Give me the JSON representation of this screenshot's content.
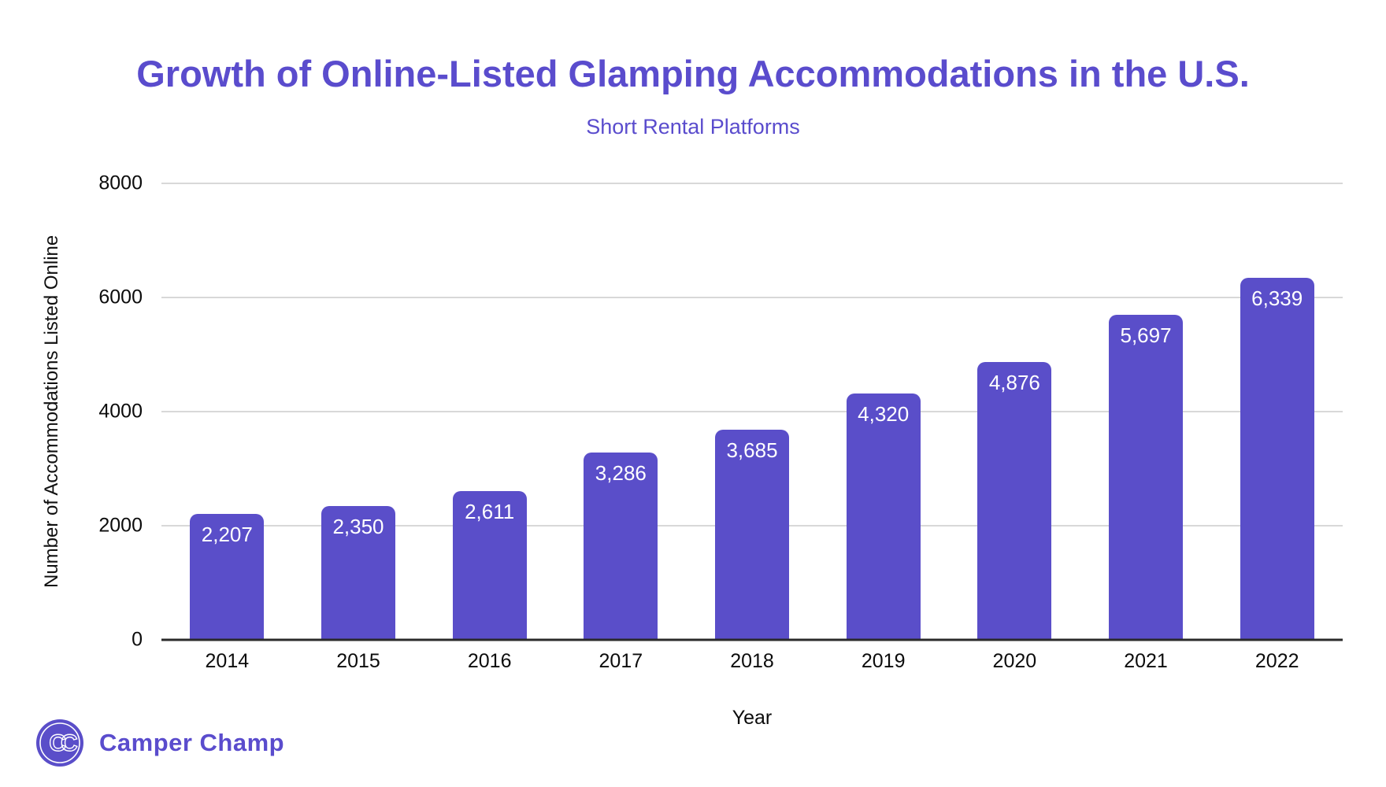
{
  "page": {
    "title": "Growth of Online-Listed Glamping Accommodations in the U.S.",
    "subtitle": "Short Rental Platforms"
  },
  "brand": {
    "name": "Camper Champ",
    "logo_initials": "CC"
  },
  "colors": {
    "accent": "#5a4ccd",
    "bar_fill": "#5a4ec9",
    "bar_label_text": "#ffffff",
    "gridline": "#d8d8d8",
    "axis_line": "#2b2b2b",
    "background": "#ffffff"
  },
  "chart_data": {
    "type": "bar",
    "title": "Growth of Online-Listed Glamping Accommodations in the U.S.",
    "subtitle": "Short Rental Platforms",
    "xlabel": "Year",
    "ylabel": "Number of Accommodations Listed Online",
    "categories": [
      "2014",
      "2015",
      "2016",
      "2017",
      "2018",
      "2019",
      "2020",
      "2021",
      "2022"
    ],
    "values": [
      2207,
      2350,
      2611,
      3286,
      3685,
      4320,
      4876,
      5697,
      6339
    ],
    "value_labels": [
      "2,207",
      "2,350",
      "2,611",
      "3,286",
      "3,685",
      "4,320",
      "4,876",
      "5,697",
      "6,339"
    ],
    "ylim": [
      0,
      8000
    ],
    "yticks": [
      0,
      2000,
      4000,
      6000,
      8000
    ],
    "grid": true,
    "legend": "none",
    "bar_label_position": "inside-top"
  }
}
